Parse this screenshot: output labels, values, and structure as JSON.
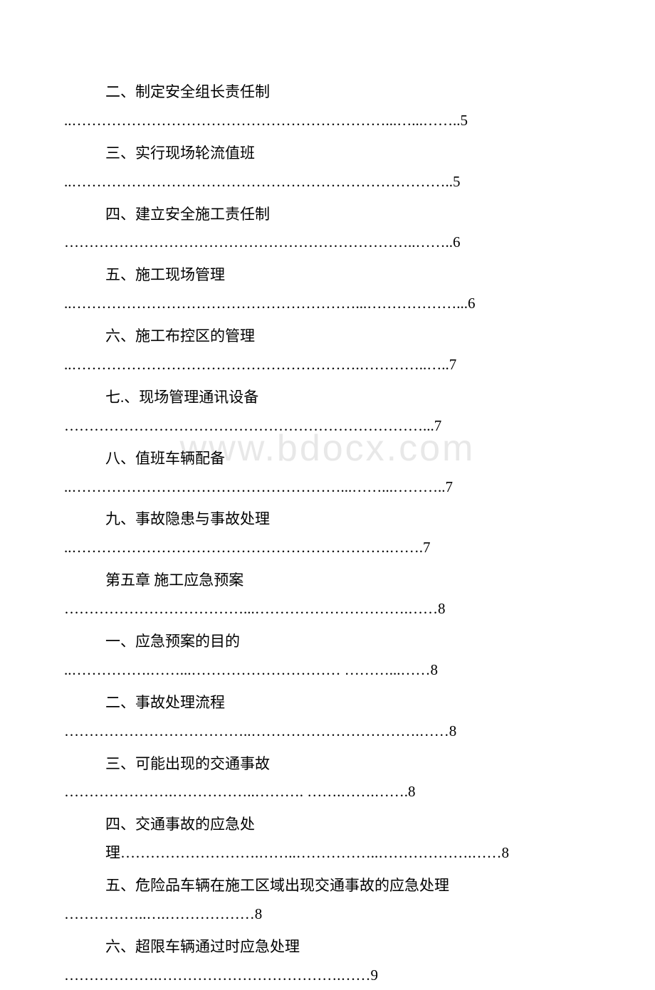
{
  "watermark": "www.bdocx.com",
  "toc": [
    {
      "title": "二、制定安全组长责任制",
      "dots": "..………………………………………………………...…...……..5"
    },
    {
      "title": "三、实行现场轮流值班",
      "dots": "..…………………………………………………………………..5"
    },
    {
      "title": "  四、建立安全施工责任制",
      "dots": "……………………………………………………………..……..6"
    },
    {
      "title": "五、施工现场管理",
      "dots": "..…………………………………………………...………………...6"
    },
    {
      "title": "六、施工布控区的管理",
      "dots": "..………………………………………………….…………..…..7"
    },
    {
      "title": "七.、现场管理通讯设备",
      "dots": "………………………………………………………………...7"
    },
    {
      "title": "八、值班车辆配备",
      "dots": "..………………………………………………...……...………..7"
    },
    {
      "title": "九、事故隐患与事故处理",
      "dots": "..……………………………………………………….…….7"
    },
    {
      "title": "第五章 施工应急预案",
      "dots": "………………………………...………………………….……8"
    },
    {
      "title": "一、应急预案的目的",
      "dots": "..…………….……...………………………… ………...……8"
    },
    {
      "title": "二、事故处理流程",
      "dots": "………………………………..…………………………….……8"
    },
    {
      "title": "三、可能出现的交通事故",
      "dots": "………………….……………..………. …….…….…….8"
    },
    {
      "title": "  四、交通事故的应急处理……………………….……..……………..……………….……8",
      "dots": ""
    },
    {
      "title": "五、危险品车辆在施工区域出现交通事故的应急处理",
      "dots": "……………..….………………8"
    },
    {
      "title": "六、超限车辆通过时应急处理",
      "dots": "……………….……………………………….……9"
    }
  ]
}
